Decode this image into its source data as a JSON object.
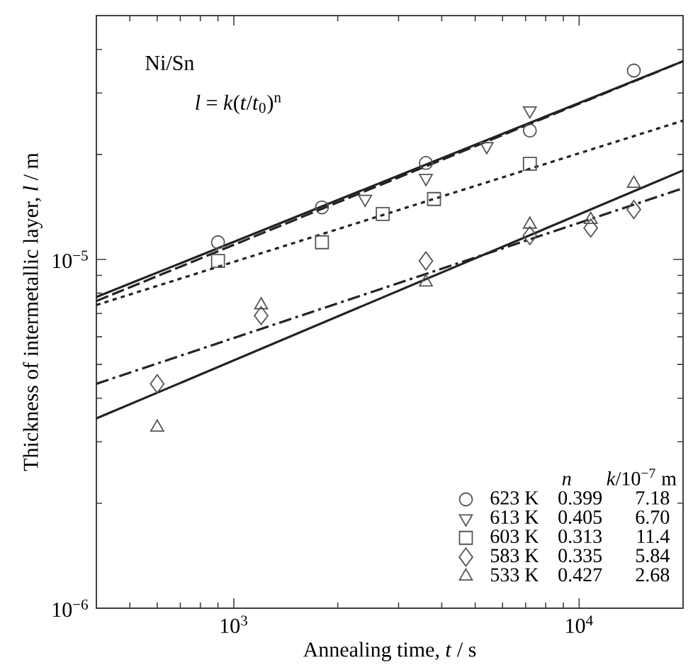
{
  "chart_data": {
    "type": "scatter",
    "log": "xy",
    "xlabel": "Annealing time, *t* / s",
    "ylabel": "Thickness of intermetallic layer, *l* / m",
    "xlim": [
      400,
      20000
    ],
    "ylim": [
      1e-06,
      5e-05
    ],
    "xticks": [
      {
        "value": 1000,
        "label": "10$^{3}$"
      },
      {
        "value": 10000,
        "label": "10$^{4}$"
      }
    ],
    "yticks": [
      {
        "value": 1e-06,
        "label": "10$^{−6}$"
      },
      {
        "value": 1e-05,
        "label": "10$^{−5}$"
      }
    ],
    "legend": "bottom right",
    "annotations": [
      "Ni/Sn",
      "*l* = *k*(*t*/*t*$_{0}$)$^{n}$",
      "*n*",
      "*k*/10$^{−7}$ m",
      "0.399",
      "0.405",
      "0.313",
      "0.335",
      "0.427",
      "7.18",
      "6.70",
      "11.4",
      "5.84",
      "2.68"
    ],
    "series": [
      {
        "name": "623 K",
        "marker": "circle",
        "color": "#555555",
        "x": [
          900,
          1800,
          3600,
          7200,
          14400
        ],
        "values": [
          1.12e-05,
          1.41e-05,
          1.89e-05,
          2.34e-05,
          3.48e-05
        ]
      },
      {
        "name": "613 K",
        "marker": "triangle-down",
        "color": "#555555",
        "x": [
          2400,
          3600,
          5400,
          7200
        ],
        "values": [
          1.49e-05,
          1.71e-05,
          2.11e-05,
          2.67e-05
        ]
      },
      {
        "name": "603 K",
        "marker": "square",
        "color": "#555555",
        "x": [
          900,
          1800,
          2700,
          3800,
          7200
        ],
        "values": [
          9.9e-06,
          1.12e-05,
          1.35e-05,
          1.49e-05,
          1.88e-05
        ]
      },
      {
        "name": "583 K",
        "marker": "diamond",
        "color": "#555555",
        "x": [
          600,
          1200,
          3600,
          7200,
          10800,
          14400
        ],
        "values": [
          4.4e-06,
          6.9e-06,
          9.9e-06,
          1.17e-05,
          1.23e-05,
          1.39e-05
        ]
      },
      {
        "name": "533 K",
        "marker": "triangle",
        "color": "#555555",
        "x": [
          600,
          1200,
          3600,
          7200,
          10800,
          14400
        ],
        "values": [
          3.3e-06,
          7.4e-06,
          8.6e-06,
          1.26e-05,
          1.3e-05,
          1.65e-05
        ]
      },
      {
        "type": "line",
        "marker": "none",
        "line_style": "solid",
        "color": "#222222",
        "x": [
          400,
          20000
        ],
        "values": [
          7.8e-06,
          3.7e-05
        ]
      },
      {
        "type": "line",
        "marker": "none",
        "line_style": "dashed",
        "color": "#222222",
        "x": [
          400,
          20000
        ],
        "values": [
          7.6e-06,
          3.7e-05
        ]
      },
      {
        "type": "line",
        "marker": "none",
        "line_style": "dotted",
        "color": "#222222",
        "x": [
          400,
          20000
        ],
        "values": [
          7.4e-06,
          2.5e-05
        ]
      },
      {
        "type": "line",
        "marker": "none",
        "line_style": "dashdot",
        "color": "#222222",
        "x": [
          400,
          20000
        ],
        "values": [
          4.4e-06,
          1.6e-05
        ]
      },
      {
        "type": "line",
        "marker": "none",
        "line_style": "solid",
        "color": "#222222",
        "x": [
          400,
          20000
        ],
        "values": [
          3.5e-06,
          1.8e-05
        ]
      }
    ]
  }
}
